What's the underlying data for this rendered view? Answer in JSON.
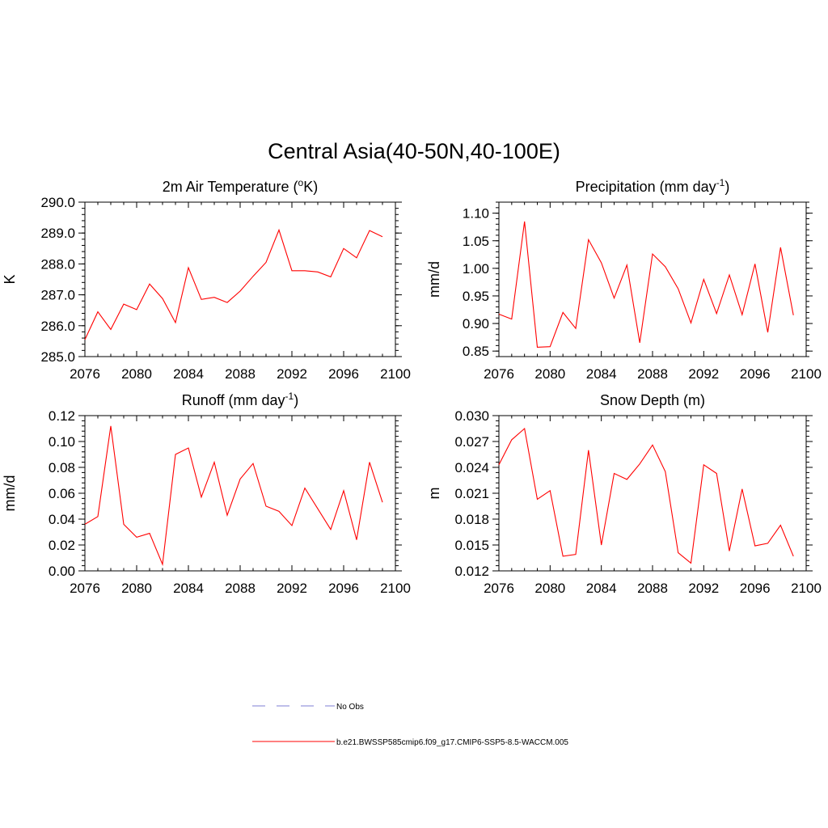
{
  "figure": {
    "title": "Central Asia(40-50N,40-100E)"
  },
  "colors": {
    "model_line": "#ff0000",
    "obs_line": "#9999dd",
    "axis": "#000000"
  },
  "chart_data": [
    {
      "type": "line",
      "title": "2m Air Temperature (",
      "title_sup": "o",
      "title_tail": "K)",
      "xlabel": "",
      "ylabel": "K",
      "xlim": [
        2076,
        2100
      ],
      "ylim": [
        285.0,
        290.0
      ],
      "xticks": [
        "2076",
        "2080",
        "2084",
        "2088",
        "2092",
        "2096",
        "2100"
      ],
      "yticks": [
        "285.0",
        "286.0",
        "287.0",
        "288.0",
        "289.0",
        "290.0"
      ],
      "x": [
        2076,
        2077,
        2078,
        2079,
        2080,
        2081,
        2082,
        2083,
        2084,
        2085,
        2086,
        2087,
        2088,
        2089,
        2090,
        2091,
        2092,
        2093,
        2094,
        2095,
        2096,
        2097,
        2098,
        2099
      ],
      "series": [
        {
          "name": "b.e21.BWSSP585cmip6.f09_g17.CMIP6-SSP5-8.5-WACCM.005",
          "values": [
            285.55,
            286.45,
            285.88,
            286.7,
            286.52,
            287.35,
            286.88,
            286.1,
            287.88,
            286.85,
            286.92,
            286.75,
            287.12,
            287.6,
            288.05,
            289.1,
            287.78,
            287.78,
            287.74,
            287.58,
            288.5,
            288.2,
            289.08,
            288.88
          ]
        }
      ]
    },
    {
      "type": "line",
      "title": "Precipitation (mm day",
      "title_sup": "-1",
      "title_tail": ")",
      "xlabel": "",
      "ylabel": "mm/d",
      "xlim": [
        2076,
        2100
      ],
      "ylim": [
        0.84,
        1.12
      ],
      "xticks": [
        "2076",
        "2080",
        "2084",
        "2088",
        "2092",
        "2096",
        "2100"
      ],
      "yticks": [
        "0.85",
        "0.90",
        "0.95",
        "1.00",
        "1.05",
        "1.10"
      ],
      "x": [
        2076,
        2077,
        2078,
        2079,
        2080,
        2081,
        2082,
        2083,
        2084,
        2085,
        2086,
        2087,
        2088,
        2089,
        2090,
        2091,
        2092,
        2093,
        2094,
        2095,
        2096,
        2097,
        2098,
        2099
      ],
      "series": [
        {
          "name": "b.e21.BWSSP585cmip6.f09_g17.CMIP6-SSP5-8.5-WACCM.005",
          "values": [
            0.917,
            0.908,
            1.085,
            0.857,
            0.858,
            0.92,
            0.891,
            1.052,
            1.01,
            0.946,
            1.006,
            0.865,
            1.026,
            1.003,
            0.963,
            0.901,
            0.98,
            0.918,
            0.988,
            0.916,
            1.008,
            0.884,
            1.038,
            0.915
          ]
        }
      ]
    },
    {
      "type": "line",
      "title": "Runoff (mm day",
      "title_sup": "-1",
      "title_tail": ")",
      "xlabel": "",
      "ylabel": "mm/d",
      "xlim": [
        2076,
        2100
      ],
      "ylim": [
        0.0,
        0.12
      ],
      "xticks": [
        "2076",
        "2080",
        "2084",
        "2088",
        "2092",
        "2096",
        "2100"
      ],
      "yticks": [
        "0.00",
        "0.02",
        "0.04",
        "0.06",
        "0.08",
        "0.10",
        "0.12"
      ],
      "x": [
        2076,
        2077,
        2078,
        2079,
        2080,
        2081,
        2082,
        2083,
        2084,
        2085,
        2086,
        2087,
        2088,
        2089,
        2090,
        2091,
        2092,
        2093,
        2094,
        2095,
        2096,
        2097,
        2098,
        2099
      ],
      "series": [
        {
          "name": "b.e21.BWSSP585cmip6.f09_g17.CMIP6-SSP5-8.5-WACCM.005",
          "values": [
            0.036,
            0.042,
            0.112,
            0.036,
            0.026,
            0.029,
            0.005,
            0.09,
            0.095,
            0.057,
            0.084,
            0.043,
            0.071,
            0.083,
            0.05,
            0.046,
            0.035,
            0.064,
            0.048,
            0.032,
            0.062,
            0.024,
            0.084,
            0.053
          ]
        }
      ]
    },
    {
      "type": "line",
      "title": "Snow Depth (m)",
      "title_sup": "",
      "title_tail": "",
      "xlabel": "",
      "ylabel": "m",
      "xlim": [
        2076,
        2100
      ],
      "ylim": [
        0.012,
        0.03
      ],
      "xticks": [
        "2076",
        "2080",
        "2084",
        "2088",
        "2092",
        "2096",
        "2100"
      ],
      "yticks": [
        "0.012",
        "0.015",
        "0.018",
        "0.021",
        "0.024",
        "0.027",
        "0.030"
      ],
      "x": [
        2076,
        2077,
        2078,
        2079,
        2080,
        2081,
        2082,
        2083,
        2084,
        2085,
        2086,
        2087,
        2088,
        2089,
        2090,
        2091,
        2092,
        2093,
        2094,
        2095,
        2096,
        2097,
        2098,
        2099
      ],
      "series": [
        {
          "name": "b.e21.BWSSP585cmip6.f09_g17.CMIP6-SSP5-8.5-WACCM.005",
          "values": [
            0.0243,
            0.0272,
            0.0285,
            0.0203,
            0.0213,
            0.0137,
            0.0139,
            0.026,
            0.015,
            0.0233,
            0.0226,
            0.0244,
            0.0266,
            0.0235,
            0.0141,
            0.0129,
            0.0243,
            0.0233,
            0.0143,
            0.0215,
            0.0149,
            0.0152,
            0.0173,
            0.0137
          ]
        }
      ]
    }
  ],
  "legend": {
    "entries": [
      {
        "label": "No Obs",
        "style": "dashed"
      },
      {
        "label": "b.e21.BWSSP585cmip6.f09_g17.CMIP6-SSP5-8.5-WACCM.005",
        "style": "solid"
      }
    ]
  }
}
